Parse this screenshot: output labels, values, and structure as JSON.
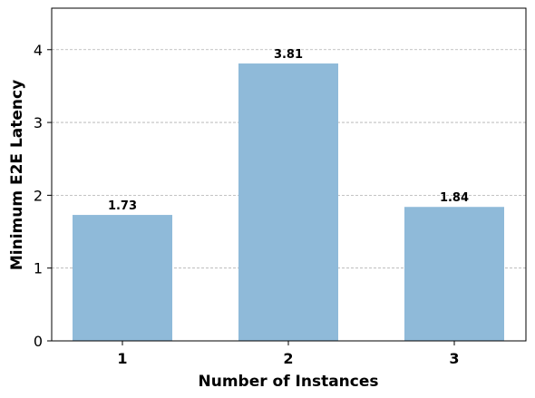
{
  "chart_data": {
    "type": "bar",
    "categories": [
      "1",
      "2",
      "3"
    ],
    "values": [
      1.73,
      3.81,
      1.84
    ],
    "data_labels": [
      "1.73",
      "3.81",
      "1.84"
    ],
    "xlabel": "Number of Instances",
    "ylabel": "Minimum E2E Latency",
    "ylim": [
      0,
      4.57
    ],
    "yticks": [
      "0",
      "1",
      "2",
      "3",
      "4"
    ],
    "grid": "horizontal dashed",
    "bar_color": "#8fbad9"
  }
}
